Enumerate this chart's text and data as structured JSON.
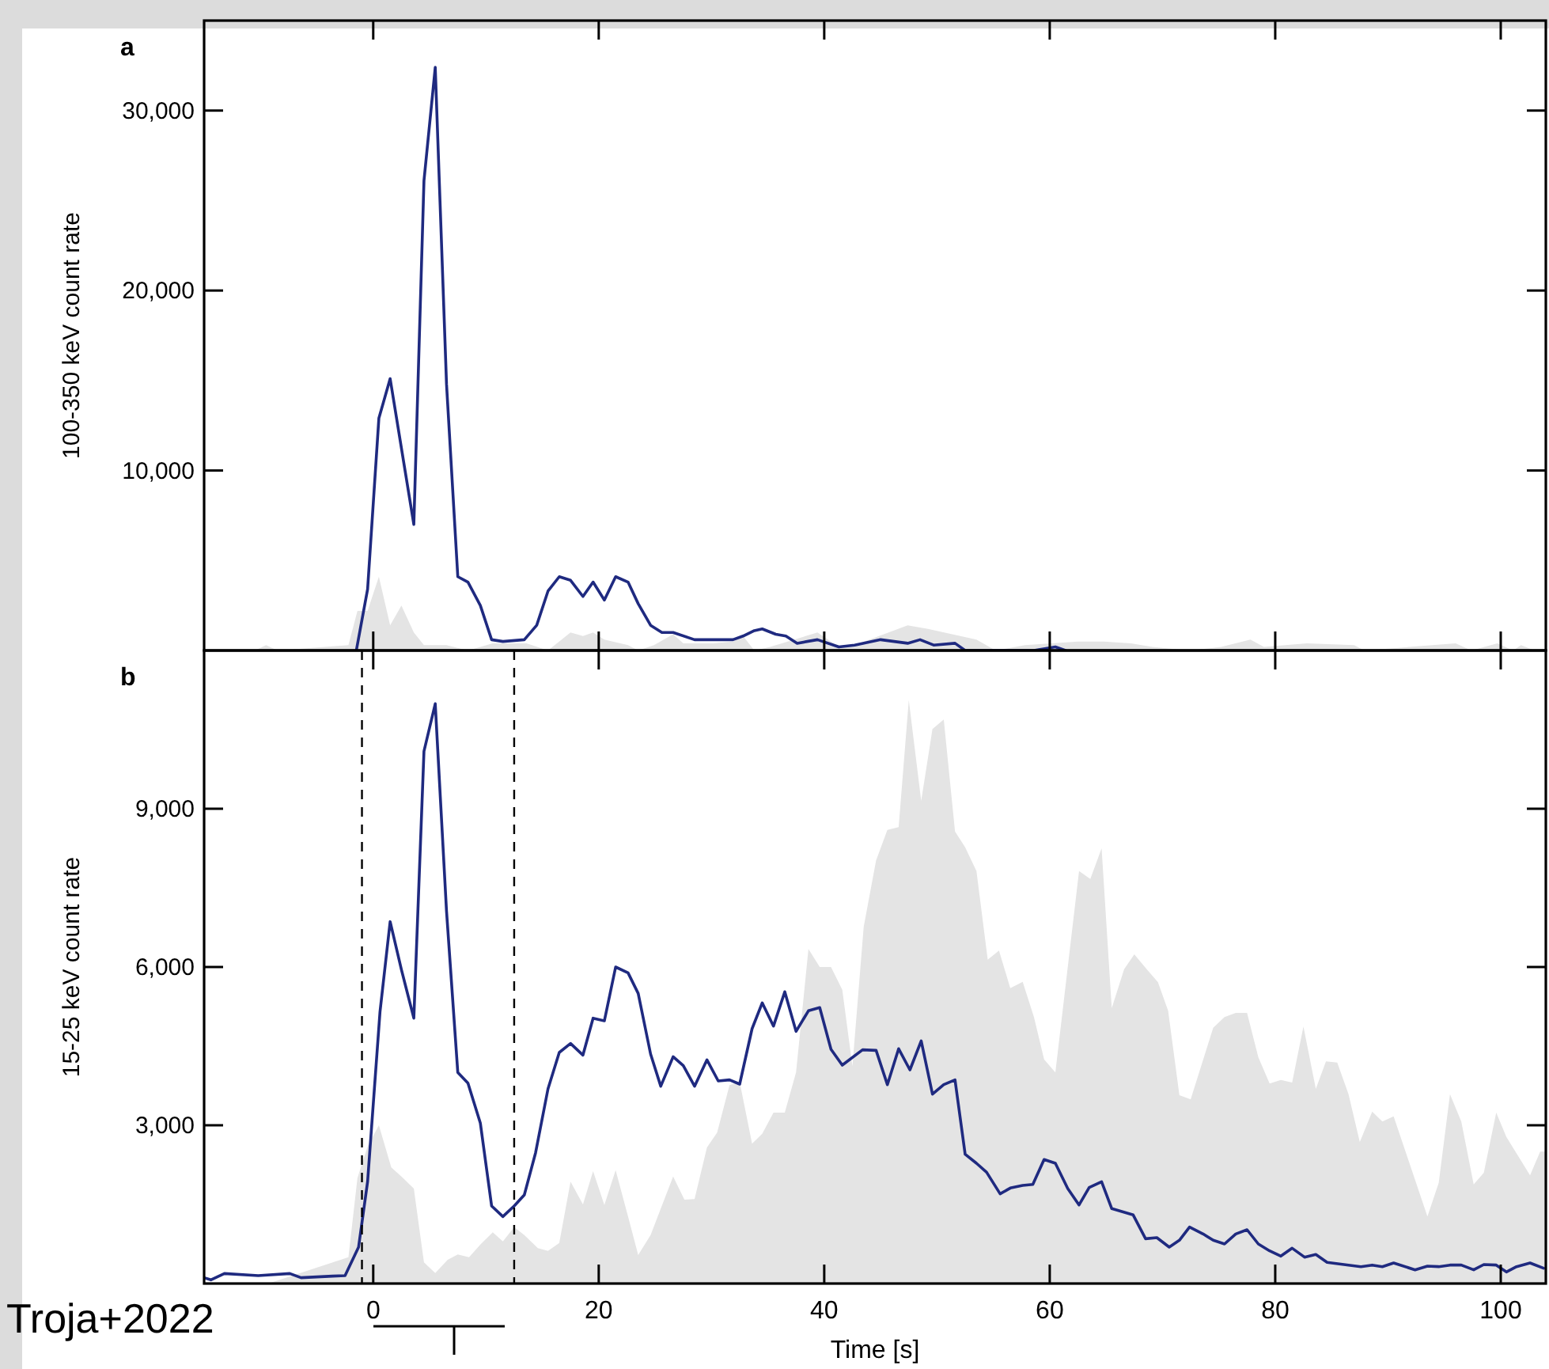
{
  "chart_data": [
    {
      "type": "line",
      "title": "a",
      "ylabel": "100-350 keV count rate",
      "xlim": [
        -15,
        104
      ],
      "ylim": [
        0,
        35000
      ],
      "xticks": [
        0,
        20,
        40,
        60,
        80,
        100
      ],
      "yticks": [
        {
          "value": 10000,
          "label": "10,000"
        },
        {
          "value": 20000,
          "label": "20,000"
        },
        {
          "value": 30000,
          "label": "30,000"
        }
      ],
      "tick_labels": "y",
      "series": [
        {
          "type": "area",
          "color": "#e4e4e4",
          "x": [
            -15,
            -10.5,
            -9.5,
            -8.5,
            -2.2,
            -1.4,
            -0.5,
            0.5,
            1.5,
            2.5,
            3.6,
            4.5,
            6.5,
            8.4,
            10.6,
            13.6,
            15.5,
            17.5,
            18.6,
            19.5,
            20.5,
            22.6,
            23.5,
            24.9,
            26.6,
            27.5,
            30.1,
            31.9,
            32.8,
            33.8,
            35.2,
            39.4,
            41.3,
            42.7,
            47.4,
            49.2,
            53.5,
            55.2,
            57.8,
            62.5,
            64.8,
            67.2,
            69.1,
            72.4,
            75.2,
            77.8,
            79.0,
            82.8,
            87.0,
            87.9,
            96.0,
            97.4,
            99.7,
            101.1,
            101.8,
            103,
            104
          ],
          "values": [
            0,
            0,
            300,
            0,
            300,
            2200,
            2200,
            4100,
            1400,
            2500,
            1000,
            300,
            300,
            0,
            400,
            400,
            0,
            1000,
            800,
            1000,
            600,
            300,
            0,
            300,
            900,
            400,
            400,
            500,
            800,
            0,
            200,
            1000,
            200,
            300,
            1400,
            1200,
            600,
            0,
            300,
            500,
            500,
            400,
            200,
            0,
            200,
            600,
            200,
            400,
            300,
            0,
            400,
            0,
            400,
            0,
            300,
            0,
            0
          ]
        },
        {
          "type": "line",
          "color": "#1f2a80",
          "x": [
            -1.5,
            -0.5,
            0.5,
            1.5,
            3.6,
            4.5,
            5.5,
            6.5,
            7.5,
            8.4,
            9.5,
            10.5,
            11.5,
            13.4,
            14.5,
            15.5,
            16.5,
            17.5,
            18.6,
            19.5,
            20.5,
            21.5,
            22.6,
            23.5,
            24.6,
            25.6,
            26.6,
            28.5,
            31.9,
            32.8,
            33.8,
            34.5,
            35.7,
            36.6,
            37.6,
            39.4,
            41.3,
            42.7,
            45.0,
            47.4,
            48.5,
            49.7,
            51.6,
            52.5,
            58.6,
            60.5,
            61.4
          ],
          "values": [
            0,
            3400,
            12900,
            15100,
            7000,
            26100,
            32400,
            14800,
            4100,
            3800,
            2500,
            600,
            500,
            600,
            1400,
            3300,
            4100,
            3900,
            3000,
            3800,
            2800,
            4100,
            3800,
            2600,
            1400,
            1000,
            1000,
            600,
            600,
            800,
            1100,
            1200,
            900,
            800,
            400,
            600,
            200,
            300,
            600,
            400,
            600,
            300,
            400,
            0,
            0,
            200,
            0
          ]
        }
      ]
    },
    {
      "type": "line",
      "title": "b",
      "xlabel": "Time [s]",
      "ylabel": "15-25 keV count rate",
      "xlim": [
        -15,
        104
      ],
      "ylim": [
        0,
        12000
      ],
      "xticks": [
        0,
        20,
        40,
        60,
        80,
        100
      ],
      "yticks": [
        {
          "value": 3000,
          "label": "3,000"
        },
        {
          "value": 6000,
          "label": "6,000"
        },
        {
          "value": 9000,
          "label": "9,000"
        }
      ],
      "ref_lines": [
        {
          "axis": "x",
          "value": -1.0,
          "color": "#000000",
          "line_style": "dashed"
        },
        {
          "axis": "x",
          "value": 12.5,
          "color": "#000000",
          "line_style": "dashed"
        }
      ],
      "annotations": [
        "Troja+2022"
      ],
      "series": [
        {
          "type": "area",
          "color": "#e4e4e4",
          "x": [
            -15,
            -9.3,
            -2.2,
            -1.4,
            -0.5,
            0.5,
            1.6,
            2.5,
            3.6,
            4.5,
            5.5,
            6.6,
            7.5,
            8.5,
            9.5,
            10.6,
            11.5,
            12.5,
            13.4,
            14.6,
            15.5,
            16.5,
            17.5,
            18.6,
            19.5,
            20.5,
            21.5,
            22.6,
            23.5,
            24.6,
            26.6,
            27.6,
            28.5,
            29.6,
            30.5,
            31.6,
            32.5,
            33.6,
            34.5,
            35.5,
            36.5,
            37.5,
            38.6,
            39.6,
            40.6,
            41.6,
            42.5,
            43.5,
            44.6,
            45.6,
            46.6,
            47.5,
            48.6,
            49.6,
            50.6,
            51.6,
            52.5,
            53.5,
            54.5,
            55.5,
            56.5,
            57.6,
            58.6,
            59.5,
            60.5,
            62.6,
            63.6,
            64.6,
            65.5,
            66.6,
            67.5,
            68.6,
            69.6,
            70.5,
            71.5,
            72.5,
            74.5,
            75.5,
            76.5,
            77.5,
            78.5,
            79.5,
            80.5,
            81.5,
            82.5,
            83.6,
            84.5,
            85.5,
            86.5,
            87.5,
            88.6,
            89.5,
            90.5,
            93.5,
            94.5,
            95.5,
            96.5,
            97.6,
            98.5,
            99.6,
            100.5,
            102.6,
            103.5,
            104
          ],
          "values": [
            0,
            0,
            500,
            2000,
            2600,
            3000,
            2200,
            2030,
            1800,
            400,
            200,
            450,
            550,
            500,
            740,
            970,
            800,
            1070,
            920,
            670,
            620,
            770,
            1930,
            1500,
            2130,
            1490,
            2150,
            1270,
            540,
            920,
            2030,
            1590,
            1600,
            2580,
            2860,
            3760,
            3820,
            2650,
            2840,
            3240,
            3240,
            4000,
            6340,
            6000,
            6000,
            5570,
            4120,
            6760,
            8020,
            8600,
            8650,
            11060,
            9150,
            10510,
            10690,
            8570,
            8270,
            7820,
            6140,
            6310,
            5600,
            5720,
            5050,
            4250,
            4000,
            7820,
            7670,
            8250,
            5220,
            5960,
            6240,
            5960,
            5710,
            5170,
            3570,
            3490,
            4850,
            5050,
            5130,
            5130,
            4290,
            3790,
            3860,
            3810,
            4870,
            3690,
            4210,
            4190,
            3590,
            2680,
            3260,
            3070,
            3170,
            1270,
            1910,
            3590,
            3070,
            1880,
            2100,
            3240,
            2780,
            2050,
            2500,
            2500
          ]
        },
        {
          "type": "line",
          "color": "#1f2a80",
          "x": [
            -15,
            -14.4,
            -13.2,
            -10.2,
            -7.4,
            -6.4,
            -3.6,
            -2.5,
            -1.3,
            -0.5,
            0.6,
            1.5,
            2.5,
            3.6,
            4.5,
            5.5,
            6.5,
            7.5,
            8.4,
            9.5,
            10.5,
            11.5,
            12.5,
            13.4,
            14.4,
            15.5,
            16.5,
            17.5,
            18.6,
            19.5,
            20.5,
            21.5,
            22.6,
            23.5,
            24.6,
            25.5,
            26.6,
            27.5,
            28.5,
            29.6,
            30.6,
            31.6,
            32.5,
            33.6,
            34.5,
            35.5,
            36.5,
            37.5,
            38.6,
            39.6,
            40.6,
            41.6,
            43.4,
            44.6,
            45.6,
            46.6,
            47.6,
            48.6,
            49.6,
            50.6,
            51.6,
            52.5,
            53.5,
            54.4,
            55.6,
            56.5,
            57.6,
            58.5,
            59.5,
            60.5,
            61.6,
            62.6,
            63.5,
            64.6,
            65.5,
            67.4,
            68.5,
            69.5,
            70.6,
            71.5,
            72.4,
            73.6,
            74.5,
            75.5,
            76.5,
            77.5,
            78.5,
            79.5,
            80.5,
            81.5,
            82.6,
            83.6,
            84.6,
            86.5,
            87.6,
            88.6,
            89.5,
            90.5,
            92.4,
            93.5,
            94.5,
            95.5,
            96.5,
            97.6,
            98.5,
            99.6,
            100.5,
            101.4,
            102.6,
            103.8
          ],
          "values": [
            110,
            70,
            190,
            150,
            190,
            110,
            140,
            150,
            690,
            1930,
            5150,
            6860,
            5950,
            5030,
            10090,
            10990,
            7060,
            4000,
            3800,
            3040,
            1470,
            1270,
            1470,
            1680,
            2480,
            3690,
            4380,
            4550,
            4330,
            5030,
            4980,
            6000,
            5890,
            5500,
            4350,
            3740,
            4300,
            4130,
            3740,
            4240,
            3840,
            3860,
            3780,
            4830,
            5320,
            4880,
            5530,
            4780,
            5170,
            5230,
            4440,
            4140,
            4430,
            4420,
            3770,
            4450,
            4050,
            4600,
            3590,
            3770,
            3860,
            2450,
            2280,
            2110,
            1700,
            1810,
            1860,
            1880,
            2350,
            2280,
            1800,
            1490,
            1820,
            1930,
            1420,
            1300,
            850,
            870,
            690,
            820,
            1070,
            940,
            820,
            750,
            940,
            1020,
            750,
            620,
            520,
            670,
            500,
            550,
            400,
            350,
            320,
            350,
            320,
            390,
            260,
            330,
            320,
            350,
            350,
            260,
            360,
            350,
            220,
            320,
            390,
            290
          ]
        }
      ]
    }
  ]
}
